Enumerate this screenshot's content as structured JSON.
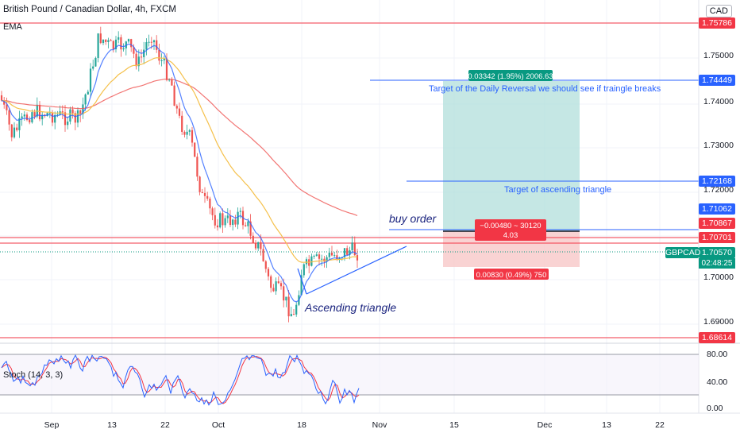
{
  "header": {
    "title": "British Pound / Canadian Dollar, 4h, FXCM",
    "indicator": "EMA",
    "currency": "CAD"
  },
  "stoch": {
    "label": "Stoch (14, 3, 3)",
    "ticks": [
      "80.00",
      "40.00",
      "0.00"
    ]
  },
  "price_axis": {
    "ticks": [
      "1.75000",
      "1.74000",
      "1.73000",
      "1.72000",
      "1.70000",
      "1.69000"
    ],
    "tags": [
      {
        "text": "1.75786",
        "color": "#f23645"
      },
      {
        "text": "1.74449",
        "color": "#2962ff"
      },
      {
        "text": "1.72168",
        "color": "#2962ff"
      },
      {
        "text": "1.71062",
        "color": "#2962ff"
      },
      {
        "text": "1.70867",
        "color": "#f23645"
      },
      {
        "text": "1.70701",
        "color": "#f23645"
      },
      {
        "text": "1.70570",
        "color": "#089981"
      },
      {
        "text": "1.68614",
        "color": "#f23645"
      }
    ],
    "pair_label": "GBPCAD",
    "countdown": "02:48:25"
  },
  "time_axis": {
    "labels": [
      "Sep",
      "13",
      "22",
      "Oct",
      "18",
      "Nov",
      "15",
      "Dec",
      "13",
      "22"
    ]
  },
  "annotations": {
    "target_daily": "Target of the Daily Reversal we should see if traingle breaks",
    "target_triangle": "Target of ascending triangle",
    "buy_order": "buy order",
    "ascending_triangle": "Ascending triangle",
    "profit_label": "0.03342 (1.95%) 2006.63",
    "entry_label_1": "−0.00480 ~ 30120",
    "entry_label_2": "4.03",
    "loss_label": "0.00830 (0.49%) 750"
  },
  "colors": {
    "bull": "#26a69a",
    "bear": "#ef5350",
    "ema_fast": "#2962ff",
    "ema_mid": "#f5c04a",
    "ema_slow": "#ef5350",
    "profit_zone": "#b2dfdb",
    "loss_zone": "#f8c8c8",
    "stoch_k": "#2962ff",
    "stoch_d": "#f23645"
  }
}
